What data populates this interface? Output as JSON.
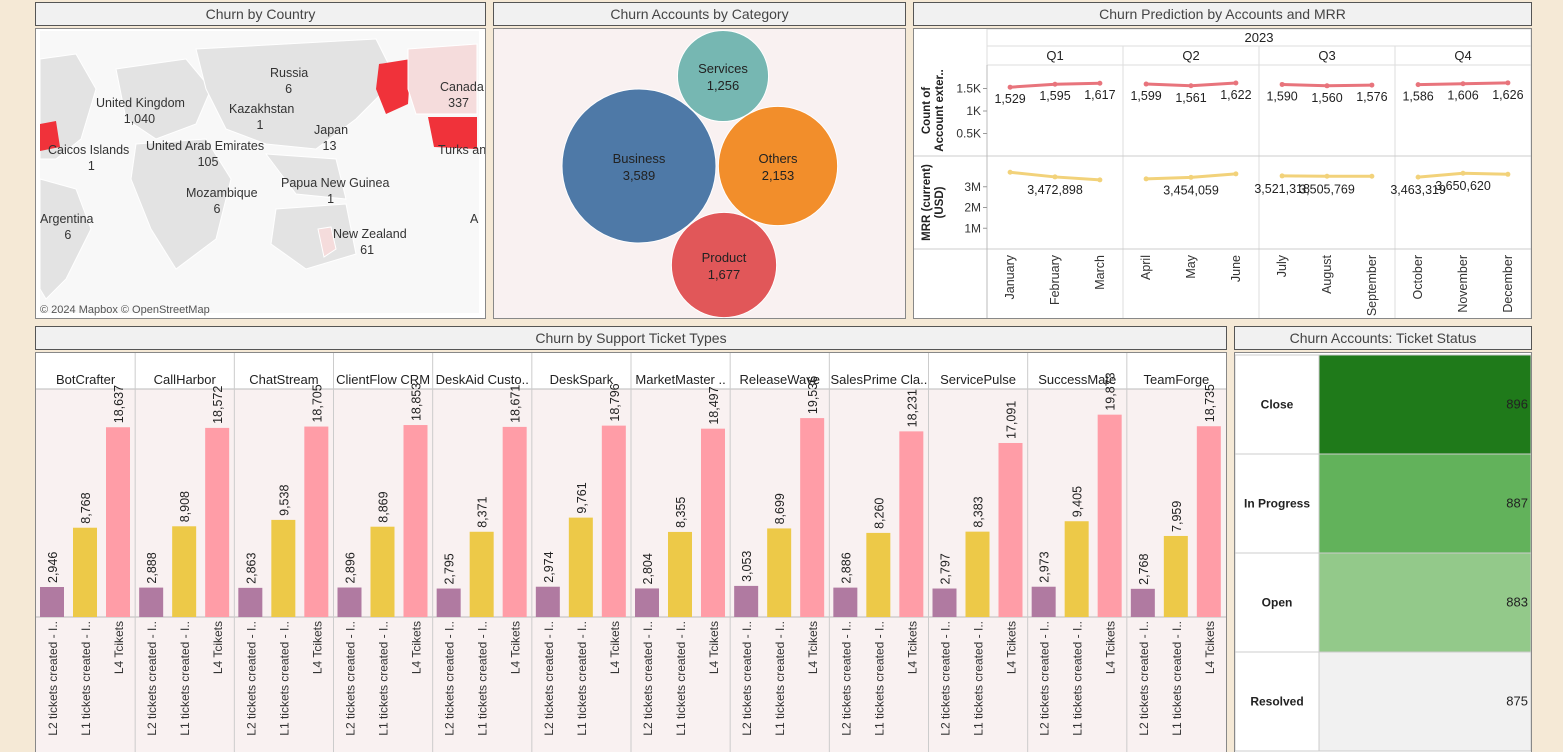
{
  "map": {
    "title": "Churn by Country",
    "attribution": "© 2024 Mapbox © OpenStreetMap",
    "labels": [
      {
        "name": "Russia",
        "value": "6"
      },
      {
        "name": "United Kingdom",
        "value": "1,040"
      },
      {
        "name": "Kazakhstan",
        "value": "1"
      },
      {
        "name": "Canada",
        "value": "337"
      },
      {
        "name": "Caicos Islands",
        "value": "1"
      },
      {
        "name": "United Arab Emirates",
        "value": "105"
      },
      {
        "name": "Japan",
        "value": "13"
      },
      {
        "name": "Turks and",
        "value": ""
      },
      {
        "name": "Mozambique",
        "value": "6"
      },
      {
        "name": "Papua New Guinea",
        "value": "1"
      },
      {
        "name": "Argentina",
        "value": "6"
      },
      {
        "name": "New Zealand",
        "value": "61"
      },
      {
        "name": "A",
        "value": ""
      }
    ],
    "colors": {
      "land": "#e3e3e3",
      "water": "#ffffff",
      "high": "#f0323a",
      "low": "#f5dcdc"
    }
  },
  "bubble": {
    "title": "Churn Accounts by Category",
    "items": [
      {
        "name": "Business",
        "value": "3,589",
        "color": "#4e79a7"
      },
      {
        "name": "Services",
        "value": "1,256",
        "color": "#76b7b2"
      },
      {
        "name": "Others",
        "value": "2,153",
        "color": "#f28e2b"
      },
      {
        "name": "Product",
        "value": "1,677",
        "color": "#e15759"
      }
    ]
  },
  "prediction": {
    "title": "Churn Prediction by Accounts and MRR",
    "year": "2023",
    "quarters": [
      "Q1",
      "Q2",
      "Q3",
      "Q4"
    ],
    "months": [
      "January",
      "February",
      "March",
      "April",
      "May",
      "June",
      "July",
      "August",
      "September",
      "October",
      "November",
      "December"
    ],
    "row1_label": [
      "Count of",
      "Account exter.."
    ],
    "row1_ticks": [
      "1.5K",
      "1K",
      "0.5K"
    ],
    "row2_label": [
      "MRR (current)",
      "(USD)"
    ],
    "row2_ticks": [
      "3M",
      "2M",
      "1M"
    ]
  },
  "tickets": {
    "title": "Churn by Support Ticket Types",
    "groups": [
      "BotCrafter",
      "CallHarbor",
      "ChatStream",
      "ClientFlow CRM",
      "DeskAid Custo..",
      "DeskSpark",
      "MarketMaster ..",
      "ReleaseWave",
      "SalesPrime Cla..",
      "ServicePulse",
      "SuccessMate",
      "TeamForge"
    ],
    "bar_labels": [
      "L2 tickets created - I..",
      "L1 tickets created - I..",
      "L4 Tcikets"
    ]
  },
  "status": {
    "title": "Churn Accounts: Ticket Status",
    "rows": [
      {
        "label": "Close",
        "value": "896",
        "color": "#1f7a1a"
      },
      {
        "label": "In Progress",
        "value": "887",
        "color": "#62b25b"
      },
      {
        "label": "Open",
        "value": "883",
        "color": "#93c98a"
      },
      {
        "label": "Resolved",
        "value": "875",
        "color": "#f1f1f1"
      }
    ]
  },
  "chart_data": [
    {
      "type": "bar",
      "title": "Churn by Support Ticket Types",
      "categories": [
        "BotCrafter",
        "CallHarbor",
        "ChatStream",
        "ClientFlow CRM",
        "DeskAid Custo..",
        "DeskSpark",
        "MarketMaster ..",
        "ReleaseWave",
        "SalesPrime Cla..",
        "ServicePulse",
        "SuccessMate",
        "TeamForge"
      ],
      "series": [
        {
          "name": "L2 tickets created - I..",
          "color": "#b07aa1",
          "values": [
            2946,
            2888,
            2863,
            2896,
            2795,
            2974,
            2804,
            3053,
            2886,
            2797,
            2973,
            2768
          ]
        },
        {
          "name": "L1 tickets created - I..",
          "color": "#edc948",
          "values": [
            8768,
            8908,
            9538,
            8869,
            8371,
            9761,
            8355,
            8699,
            8260,
            8383,
            9405,
            7959
          ]
        },
        {
          "name": "L4 Tcikets",
          "color": "#ff9da7",
          "values": [
            18637,
            18572,
            18705,
            18853,
            18671,
            18796,
            18497,
            19536,
            18231,
            17091,
            19873,
            18735
          ]
        }
      ],
      "ylim": [
        0,
        22000
      ]
    },
    {
      "type": "line",
      "title": "Churn Prediction by Accounts and MRR",
      "x": [
        "January",
        "February",
        "March",
        "April",
        "May",
        "June",
        "July",
        "August",
        "September",
        "October",
        "November",
        "December"
      ],
      "series": [
        {
          "name": "Count of Account exter..",
          "color": "#e8747c",
          "values": [
            1529,
            1595,
            1617,
            1599,
            1561,
            1622,
            1590,
            1560,
            1576,
            1586,
            1606,
            1626
          ],
          "labels": [
            "1,529",
            "1,595",
            "1,617",
            "1,599",
            "1,561",
            "1,622",
            "1,590",
            "1,560",
            "1,576",
            "1,586",
            "1,606",
            "1,626"
          ],
          "ylim": [
            0,
            1800
          ]
        },
        {
          "name": "MRR (current) (USD)",
          "color": "#f2d27a",
          "values": [
            3700000,
            3472898,
            3330000,
            3380000,
            3454059,
            3620000,
            3521318,
            3505769,
            3505769,
            3463319,
            3650620,
            3600000
          ],
          "labels": [
            "",
            "3,472,898",
            "",
            "",
            "3,454,059",
            "",
            "3,521,318",
            "3,505,769",
            "",
            "3,463,319",
            "3,650,620",
            ""
          ],
          "ylim": [
            0,
            4000000
          ]
        }
      ]
    },
    {
      "type": "scatter",
      "title": "Churn Accounts by Category",
      "categories": [
        "Business",
        "Services",
        "Others",
        "Product"
      ],
      "values": [
        3589,
        1256,
        2153,
        1677
      ]
    },
    {
      "type": "table",
      "title": "Churn Accounts: Ticket Status",
      "categories": [
        "Close",
        "In Progress",
        "Open",
        "Resolved"
      ],
      "values": [
        896,
        887,
        883,
        875
      ]
    }
  ]
}
